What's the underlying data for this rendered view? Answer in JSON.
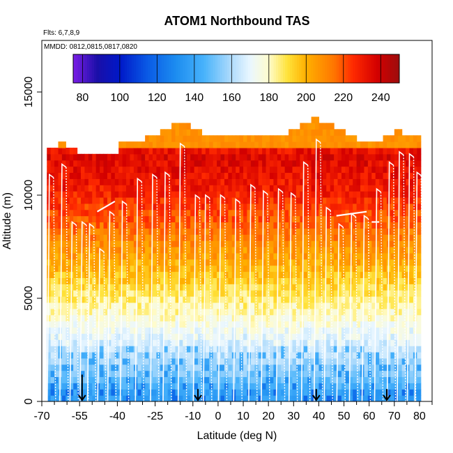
{
  "chart_data": {
    "type": "heatmap",
    "title": "ATOM1 Northbound TAS",
    "subtitle_flights": "Flts: 6,7,8,9",
    "subtitle_dates": "MMDD: 0812,0815,0817,0820",
    "xlabel": "Latitude (deg N)",
    "ylabel": "Altitude (m)",
    "xlim": [
      -70,
      85
    ],
    "ylim": [
      0,
      17500
    ],
    "x_tick_values": [
      -70,
      -55,
      -40,
      -25,
      -10,
      0,
      10,
      20,
      30,
      40,
      50,
      60,
      70,
      80
    ],
    "x_tick_labels": [
      "-70",
      "-55",
      "-40",
      "-25",
      "-10",
      "0",
      "10",
      "20",
      "30",
      "40",
      "50",
      "60",
      "70",
      "80"
    ],
    "y_tick_values": [
      0,
      5000,
      10000,
      15000
    ],
    "y_tick_labels": [
      "0",
      "5000",
      "10000",
      "15000"
    ],
    "colorbar": {
      "min": 75,
      "max": 250,
      "tick_values": [
        80,
        100,
        120,
        140,
        160,
        180,
        200,
        220,
        240
      ],
      "tick_labels": [
        "80",
        "100",
        "120",
        "140",
        "160",
        "180",
        "200",
        "220",
        "240"
      ],
      "stops": [
        {
          "v": 75,
          "c": "#7b1ee6"
        },
        {
          "v": 88,
          "c": "#1a0fa8"
        },
        {
          "v": 100,
          "c": "#0018c8"
        },
        {
          "v": 115,
          "c": "#0a5be6"
        },
        {
          "v": 130,
          "c": "#1c8cf0"
        },
        {
          "v": 145,
          "c": "#47b2fb"
        },
        {
          "v": 160,
          "c": "#b0dcfc"
        },
        {
          "v": 170,
          "c": "#eaf7ff"
        },
        {
          "v": 180,
          "c": "#fffccc"
        },
        {
          "v": 190,
          "c": "#ffe23a"
        },
        {
          "v": 200,
          "c": "#ffb000"
        },
        {
          "v": 215,
          "c": "#ff7600"
        },
        {
          "v": 225,
          "c": "#ff2a00"
        },
        {
          "v": 238,
          "c": "#d40000"
        },
        {
          "v": 250,
          "c": "#9c0d0d"
        }
      ]
    },
    "tas_profile_by_altitude": {
      "altitudes_m": [
        0,
        500,
        1000,
        2000,
        3000,
        4000,
        5000,
        6000,
        7000,
        8000,
        9000,
        10000,
        11000,
        12000,
        13000
      ],
      "tas_kts": [
        138,
        140,
        150,
        160,
        168,
        178,
        186,
        195,
        204,
        212,
        220,
        228,
        232,
        236,
        210
      ]
    },
    "profile_latitudes_deg": [
      -67,
      -62,
      -58,
      -54,
      -51,
      -47,
      -43,
      -38,
      -32,
      -26,
      -21,
      -15,
      -9,
      -5,
      1,
      7,
      13,
      18,
      24,
      29,
      34,
      39,
      43,
      48,
      53,
      58,
      63,
      68,
      72,
      76,
      79
    ],
    "profile_peak_altitudes_m": [
      11000,
      11500,
      8700,
      8700,
      8600,
      7400,
      9200,
      9700,
      10800,
      11000,
      11100,
      12500,
      10000,
      10000,
      10000,
      9800,
      10500,
      10200,
      10300,
      10100,
      11600,
      12700,
      9400,
      8600,
      9100,
      9000,
      10300,
      11600,
      12100,
      12000,
      11100
    ],
    "flight_marker_latitudes_deg": [
      -54,
      -8,
      39,
      67
    ],
    "flight_marker_altitudes_m": [
      1300,
      600,
      600,
      600
    ],
    "cruise_segments": [
      {
        "lat_start": -48,
        "lat_end": -41,
        "alt_m": 9200,
        "alt_end_m": 9700
      },
      {
        "lat_start": 47,
        "lat_end": 59,
        "alt_m": 9000,
        "alt_end_m": 9200
      },
      {
        "lat_start": 61,
        "lat_end": 64,
        "alt_m": 8700,
        "alt_end_m": 8700
      }
    ]
  }
}
